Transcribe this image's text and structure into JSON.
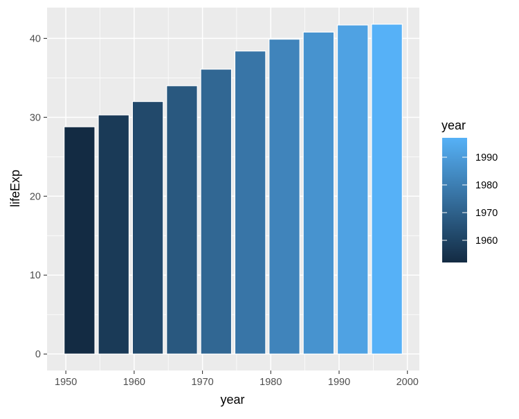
{
  "chart_data": {
    "type": "bar",
    "x": [
      1952,
      1957,
      1962,
      1967,
      1972,
      1977,
      1982,
      1987,
      1992,
      1997
    ],
    "values": [
      28.8,
      30.3,
      32.0,
      34.0,
      36.1,
      38.4,
      39.9,
      40.8,
      41.7,
      41.8
    ],
    "xlabel": "year",
    "ylabel": "lifeExp",
    "xlim": [
      1947.25,
      2001.75
    ],
    "ylim": [
      -2.09,
      43.9
    ],
    "x_ticks": [
      1950,
      1960,
      1970,
      1980,
      1990,
      2000
    ],
    "x_tick_labels": [
      "1950",
      "1960",
      "1970",
      "1980",
      "1990",
      "2000"
    ],
    "y_ticks": [
      0,
      10,
      20,
      30,
      40
    ],
    "y_tick_labels": [
      "0",
      "10",
      "20",
      "30",
      "40"
    ],
    "grid": true,
    "fill_scale": {
      "variable": "year",
      "low_color": "#132B43",
      "high_color": "#56B1F7",
      "range": [
        1952,
        1997
      ]
    },
    "legend": {
      "title": "year",
      "position": "right",
      "breaks": [
        1960,
        1970,
        1980,
        1990
      ],
      "labels": [
        "1960",
        "1970",
        "1980",
        "1990"
      ]
    },
    "colors": {
      "panel_background": "#EBEBEB",
      "grid_major": "#FFFFFF",
      "bar_outline": "#FFFFFF"
    }
  }
}
